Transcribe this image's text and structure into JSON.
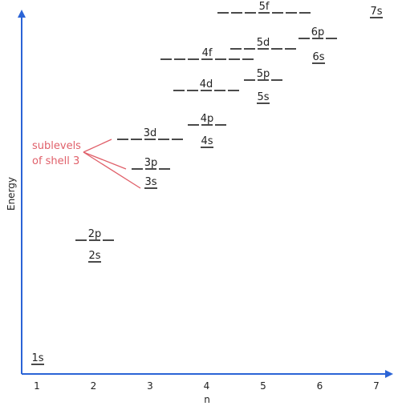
{
  "axes": {
    "y_label": "Energy",
    "x_label": "n",
    "x_ticks": [
      "1",
      "2",
      "3",
      "4",
      "5",
      "6",
      "7"
    ],
    "axis_color": "#2b64d6"
  },
  "annotation": {
    "lines": [
      "sublevels",
      "of shell 3"
    ],
    "color": "#e0606a"
  },
  "sublevels": [
    {
      "label": "1s",
      "n": 1,
      "orbitals": 1
    },
    {
      "label": "2s",
      "n": 2,
      "orbitals": 1
    },
    {
      "label": "2p",
      "n": 2,
      "orbitals": 3
    },
    {
      "label": "3s",
      "n": 3,
      "orbitals": 1
    },
    {
      "label": "3p",
      "n": 3,
      "orbitals": 3
    },
    {
      "label": "3d",
      "n": 3,
      "orbitals": 5
    },
    {
      "label": "4s",
      "n": 4,
      "orbitals": 1
    },
    {
      "label": "4p",
      "n": 4,
      "orbitals": 3
    },
    {
      "label": "4d",
      "n": 4,
      "orbitals": 5
    },
    {
      "label": "4f",
      "n": 4,
      "orbitals": 7
    },
    {
      "label": "5s",
      "n": 5,
      "orbitals": 1
    },
    {
      "label": "5p",
      "n": 5,
      "orbitals": 3
    },
    {
      "label": "5d",
      "n": 5,
      "orbitals": 5
    },
    {
      "label": "5f",
      "n": 5,
      "orbitals": 7
    },
    {
      "label": "6s",
      "n": 6,
      "orbitals": 1
    },
    {
      "label": "6p",
      "n": 6,
      "orbitals": 3
    },
    {
      "label": "7s",
      "n": 7,
      "orbitals": 1
    }
  ],
  "line_color": "#4a4a4a"
}
